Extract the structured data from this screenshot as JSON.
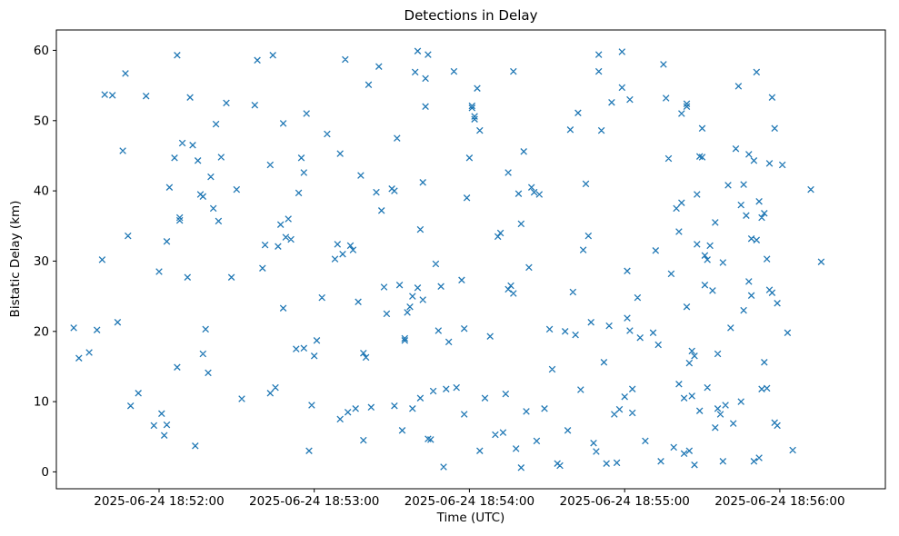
{
  "chart_data": {
    "type": "scatter",
    "title": "Detections in Delay",
    "xlabel": "Time (UTC)",
    "ylabel": "Bistatic Delay (km)",
    "marker": "x",
    "marker_color": "#1f77b4",
    "grid": false,
    "legend": "none",
    "x_unit": "seconds after 2025-06-24 18:51:00 UTC",
    "xlim": [
      20.3,
      340.8
    ],
    "ylim": [
      -2.4,
      62.9
    ],
    "x_ticks": [
      {
        "pos": 60,
        "label": "2025-06-24 18:52:00"
      },
      {
        "pos": 120,
        "label": "2025-06-24 18:53:00"
      },
      {
        "pos": 180,
        "label": "2025-06-24 18:54:00"
      },
      {
        "pos": 240,
        "label": "2025-06-24 18:55:00"
      },
      {
        "pos": 300,
        "label": "2025-06-24 18:56:00"
      }
    ],
    "y_ticks": [
      0,
      10,
      20,
      30,
      40,
      50,
      60
    ],
    "points": [
      [
        27,
        20.5
      ],
      [
        29,
        16.2
      ],
      [
        33,
        17.0
      ],
      [
        36,
        20.2
      ],
      [
        38,
        30.2
      ],
      [
        39,
        53.7
      ],
      [
        42,
        53.6
      ],
      [
        44,
        21.3
      ],
      [
        46,
        45.7
      ],
      [
        47,
        56.7
      ],
      [
        48,
        33.6
      ],
      [
        49,
        9.4
      ],
      [
        52,
        11.2
      ],
      [
        55,
        53.5
      ],
      [
        58,
        6.6
      ],
      [
        60,
        28.5
      ],
      [
        61,
        8.3
      ],
      [
        62,
        5.2
      ],
      [
        63,
        6.7
      ],
      [
        63,
        32.8
      ],
      [
        64,
        40.5
      ],
      [
        66,
        44.7
      ],
      [
        67,
        14.9
      ],
      [
        67,
        59.3
      ],
      [
        68,
        36.2
      ],
      [
        68,
        35.8
      ],
      [
        69,
        46.8
      ],
      [
        71,
        27.7
      ],
      [
        72,
        53.3
      ],
      [
        73,
        46.5
      ],
      [
        74,
        3.7
      ],
      [
        75,
        44.3
      ],
      [
        76,
        39.5
      ],
      [
        77,
        39.2
      ],
      [
        77,
        16.8
      ],
      [
        78,
        20.3
      ],
      [
        79,
        14.1
      ],
      [
        80,
        42.0
      ],
      [
        81,
        37.5
      ],
      [
        82,
        49.5
      ],
      [
        83,
        35.7
      ],
      [
        84,
        44.8
      ],
      [
        86,
        52.5
      ],
      [
        88,
        27.7
      ],
      [
        90,
        40.2
      ],
      [
        92,
        10.4
      ],
      [
        97,
        52.2
      ],
      [
        98,
        58.6
      ],
      [
        100,
        29.0
      ],
      [
        101,
        32.3
      ],
      [
        103,
        43.7
      ],
      [
        103,
        11.2
      ],
      [
        104,
        59.3
      ],
      [
        105,
        12.0
      ],
      [
        106,
        32.1
      ],
      [
        107,
        35.2
      ],
      [
        108,
        49.6
      ],
      [
        108,
        23.3
      ],
      [
        109,
        33.4
      ],
      [
        110,
        36.0
      ],
      [
        111,
        33.1
      ],
      [
        113,
        17.5
      ],
      [
        114,
        39.7
      ],
      [
        115,
        44.7
      ],
      [
        116,
        42.6
      ],
      [
        116,
        17.6
      ],
      [
        117,
        51.0
      ],
      [
        118,
        3.0
      ],
      [
        119,
        9.5
      ],
      [
        120,
        16.5
      ],
      [
        121,
        18.7
      ],
      [
        123,
        24.8
      ],
      [
        125,
        48.1
      ],
      [
        128,
        30.3
      ],
      [
        129,
        32.4
      ],
      [
        130,
        45.3
      ],
      [
        130,
        7.5
      ],
      [
        131,
        31.0
      ],
      [
        132,
        58.7
      ],
      [
        133,
        8.5
      ],
      [
        134,
        32.2
      ],
      [
        135,
        31.6
      ],
      [
        136,
        9.0
      ],
      [
        137,
        24.2
      ],
      [
        138,
        42.2
      ],
      [
        139,
        16.9
      ],
      [
        139,
        4.5
      ],
      [
        140,
        16.3
      ],
      [
        141,
        55.1
      ],
      [
        142,
        9.2
      ],
      [
        144,
        39.8
      ],
      [
        145,
        57.7
      ],
      [
        146,
        37.2
      ],
      [
        147,
        26.3
      ],
      [
        148,
        22.5
      ],
      [
        150,
        40.3
      ],
      [
        151,
        9.4
      ],
      [
        151,
        40.0
      ],
      [
        152,
        47.5
      ],
      [
        153,
        26.6
      ],
      [
        154,
        5.9
      ],
      [
        155,
        19.0
      ],
      [
        155,
        18.7
      ],
      [
        156,
        22.7
      ],
      [
        157,
        23.5
      ],
      [
        158,
        9.0
      ],
      [
        158,
        25.0
      ],
      [
        159,
        56.9
      ],
      [
        160,
        59.9
      ],
      [
        160,
        26.2
      ],
      [
        161,
        10.5
      ],
      [
        161,
        34.5
      ],
      [
        162,
        24.5
      ],
      [
        162,
        41.2
      ],
      [
        163,
        52.0
      ],
      [
        163,
        56.0
      ],
      [
        164,
        59.4
      ],
      [
        164,
        4.7
      ],
      [
        165,
        4.6
      ],
      [
        166,
        11.5
      ],
      [
        167,
        29.6
      ],
      [
        168,
        20.1
      ],
      [
        169,
        26.4
      ],
      [
        170,
        0.7
      ],
      [
        171,
        11.8
      ],
      [
        172,
        18.5
      ],
      [
        174,
        57.0
      ],
      [
        175,
        12.0
      ],
      [
        177,
        27.3
      ],
      [
        178,
        20.4
      ],
      [
        178,
        8.2
      ],
      [
        179,
        39.0
      ],
      [
        180,
        44.7
      ],
      [
        181,
        51.8
      ],
      [
        181,
        52.1
      ],
      [
        182,
        50.6
      ],
      [
        182,
        50.2
      ],
      [
        183,
        54.6
      ],
      [
        184,
        48.6
      ],
      [
        184,
        3.0
      ],
      [
        186,
        10.5
      ],
      [
        188,
        19.3
      ],
      [
        190,
        5.3
      ],
      [
        191,
        33.5
      ],
      [
        192,
        34.0
      ],
      [
        193,
        5.6
      ],
      [
        194,
        11.1
      ],
      [
        195,
        42.6
      ],
      [
        195,
        26.0
      ],
      [
        196,
        26.5
      ],
      [
        197,
        57.0
      ],
      [
        197,
        25.4
      ],
      [
        198,
        3.3
      ],
      [
        199,
        39.6
      ],
      [
        200,
        35.3
      ],
      [
        200,
        0.6
      ],
      [
        201,
        45.6
      ],
      [
        202,
        8.6
      ],
      [
        203,
        29.1
      ],
      [
        204,
        40.5
      ],
      [
        205,
        39.8
      ],
      [
        206,
        4.4
      ],
      [
        207,
        39.5
      ],
      [
        209,
        9.0
      ],
      [
        211,
        20.3
      ],
      [
        212,
        14.6
      ],
      [
        214,
        1.2
      ],
      [
        215,
        0.9
      ],
      [
        217,
        20.0
      ],
      [
        218,
        5.9
      ],
      [
        219,
        48.7
      ],
      [
        220,
        25.6
      ],
      [
        221,
        19.5
      ],
      [
        222,
        51.1
      ],
      [
        223,
        11.7
      ],
      [
        224,
        31.6
      ],
      [
        225,
        41.0
      ],
      [
        226,
        33.6
      ],
      [
        227,
        21.3
      ],
      [
        228,
        4.1
      ],
      [
        229,
        2.9
      ],
      [
        230,
        59.4
      ],
      [
        230,
        57.0
      ],
      [
        231,
        48.6
      ],
      [
        232,
        15.6
      ],
      [
        233,
        1.2
      ],
      [
        234,
        20.8
      ],
      [
        235,
        52.6
      ],
      [
        236,
        8.2
      ],
      [
        237,
        1.3
      ],
      [
        238,
        8.9
      ],
      [
        239,
        54.7
      ],
      [
        239,
        59.8
      ],
      [
        240,
        10.7
      ],
      [
        241,
        28.6
      ],
      [
        241,
        21.9
      ],
      [
        242,
        53.0
      ],
      [
        242,
        20.1
      ],
      [
        243,
        11.8
      ],
      [
        243,
        8.4
      ],
      [
        245,
        24.8
      ],
      [
        246,
        19.1
      ],
      [
        248,
        4.4
      ],
      [
        251,
        19.8
      ],
      [
        252,
        31.5
      ],
      [
        253,
        18.1
      ],
      [
        254,
        1.5
      ],
      [
        255,
        58.0
      ],
      [
        256,
        53.2
      ],
      [
        257,
        44.6
      ],
      [
        258,
        28.2
      ],
      [
        259,
        3.5
      ],
      [
        260,
        37.5
      ],
      [
        261,
        34.2
      ],
      [
        261,
        12.5
      ],
      [
        262,
        51.0
      ],
      [
        262,
        38.3
      ],
      [
        263,
        10.5
      ],
      [
        263,
        2.6
      ],
      [
        264,
        52.4
      ],
      [
        264,
        52.0
      ],
      [
        264,
        23.5
      ],
      [
        265,
        15.5
      ],
      [
        265,
        3.0
      ],
      [
        266,
        10.8
      ],
      [
        266,
        17.2
      ],
      [
        267,
        16.5
      ],
      [
        267,
        1.0
      ],
      [
        268,
        39.5
      ],
      [
        268,
        32.4
      ],
      [
        269,
        44.9
      ],
      [
        269,
        8.7
      ],
      [
        270,
        48.9
      ],
      [
        270,
        44.8
      ],
      [
        271,
        30.8
      ],
      [
        271,
        26.6
      ],
      [
        272,
        12.0
      ],
      [
        272,
        30.2
      ],
      [
        273,
        32.2
      ],
      [
        274,
        25.8
      ],
      [
        275,
        35.5
      ],
      [
        275,
        6.3
      ],
      [
        276,
        9.0
      ],
      [
        276,
        16.8
      ],
      [
        277,
        8.2
      ],
      [
        278,
        29.8
      ],
      [
        278,
        1.5
      ],
      [
        279,
        9.5
      ],
      [
        280,
        40.8
      ],
      [
        281,
        20.5
      ],
      [
        282,
        6.9
      ],
      [
        283,
        46.0
      ],
      [
        284,
        54.9
      ],
      [
        285,
        10.0
      ],
      [
        285,
        38.0
      ],
      [
        286,
        40.9
      ],
      [
        286,
        23.0
      ],
      [
        287,
        36.5
      ],
      [
        288,
        45.2
      ],
      [
        288,
        27.1
      ],
      [
        289,
        33.2
      ],
      [
        289,
        25.1
      ],
      [
        290,
        44.3
      ],
      [
        290,
        1.5
      ],
      [
        291,
        56.9
      ],
      [
        291,
        33.0
      ],
      [
        292,
        38.5
      ],
      [
        292,
        2.0
      ],
      [
        293,
        36.2
      ],
      [
        293,
        11.8
      ],
      [
        294,
        15.6
      ],
      [
        294,
        36.8
      ],
      [
        295,
        30.3
      ],
      [
        295,
        11.9
      ],
      [
        296,
        43.9
      ],
      [
        296,
        25.9
      ],
      [
        297,
        53.3
      ],
      [
        297,
        25.5
      ],
      [
        298,
        7.0
      ],
      [
        298,
        48.9
      ],
      [
        299,
        6.6
      ],
      [
        299,
        24.0
      ],
      [
        301,
        43.7
      ],
      [
        303,
        19.8
      ],
      [
        305,
        3.1
      ],
      [
        312,
        40.2
      ],
      [
        316,
        29.9
      ]
    ]
  }
}
